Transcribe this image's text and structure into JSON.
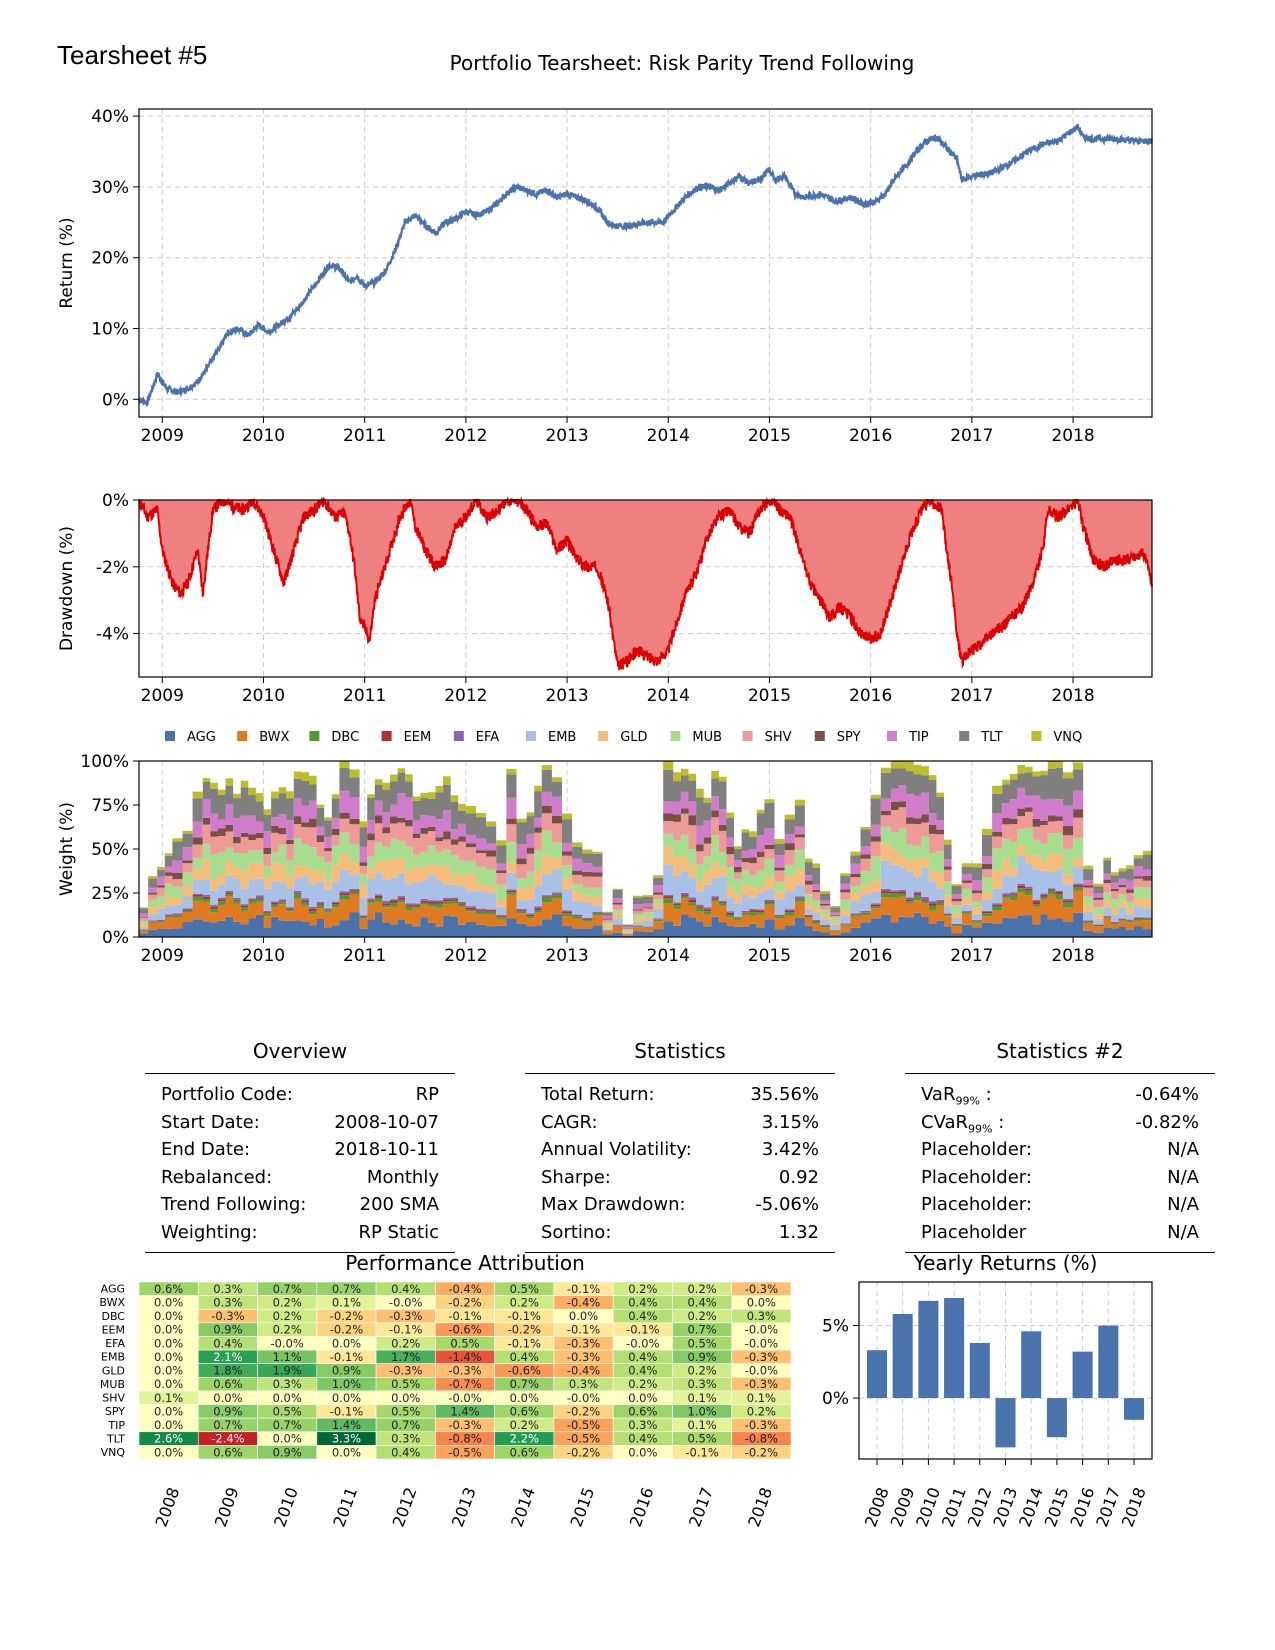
{
  "header": {
    "corner_title": "Tearsheet #5",
    "main_title": "Portfolio Tearsheet: Risk Parity Trend Following"
  },
  "colors": {
    "line": "#4a73ae",
    "drawdown_line": "#dd0000",
    "drawdown_fill": "#ee8080",
    "grid": "#cccccc",
    "bar": "#4a73ae"
  },
  "chart_data": [
    {
      "id": "returns",
      "type": "line",
      "ylabel": "Return (%)",
      "xlabel": "",
      "xlim": [
        2008.77,
        2018.78
      ],
      "ylim": [
        -2.5,
        41
      ],
      "yticks": [
        0,
        10,
        20,
        30,
        40
      ],
      "ytick_labels": [
        "0%",
        "10%",
        "20%",
        "30%",
        "40%"
      ],
      "xticks": [
        2009,
        2010,
        2011,
        2012,
        2013,
        2014,
        2015,
        2016,
        2017,
        2018
      ],
      "grid": true,
      "x": [
        2008.77,
        2008.85,
        2008.95,
        2009.05,
        2009.15,
        2009.25,
        2009.35,
        2009.45,
        2009.55,
        2009.65,
        2009.75,
        2009.85,
        2009.95,
        2010.05,
        2010.15,
        2010.25,
        2010.35,
        2010.45,
        2010.55,
        2010.65,
        2010.75,
        2010.85,
        2010.92,
        2011.0,
        2011.1,
        2011.2,
        2011.3,
        2011.4,
        2011.5,
        2011.6,
        2011.7,
        2011.8,
        2011.9,
        2012.0,
        2012.1,
        2012.2,
        2012.3,
        2012.4,
        2012.5,
        2012.6,
        2012.7,
        2012.8,
        2012.9,
        2013.0,
        2013.1,
        2013.2,
        2013.3,
        2013.4,
        2013.47,
        2013.6,
        2013.8,
        2013.95,
        2014.1,
        2014.2,
        2014.3,
        2014.4,
        2014.5,
        2014.6,
        2014.7,
        2014.8,
        2014.9,
        2015.0,
        2015.05,
        2015.15,
        2015.25,
        2015.35,
        2015.5,
        2015.65,
        2015.8,
        2015.95,
        2016.05,
        2016.15,
        2016.25,
        2016.35,
        2016.45,
        2016.55,
        2016.65,
        2016.75,
        2016.85,
        2016.9,
        2017.0,
        2017.2,
        2017.4,
        2017.55,
        2017.7,
        2017.85,
        2017.95,
        2018.05,
        2018.1,
        2018.2,
        2018.4,
        2018.6,
        2018.78
      ],
      "values": [
        0,
        -0.5,
        3.5,
        1.5,
        1.0,
        1.5,
        2.5,
        4.5,
        7.0,
        9.5,
        10.0,
        9.0,
        10.5,
        9.5,
        10.5,
        11.5,
        13.0,
        15.0,
        17.0,
        19.0,
        18.5,
        16.5,
        17.5,
        16.0,
        16.5,
        18.0,
        21.0,
        25.0,
        26.0,
        24.5,
        23.5,
        25.0,
        25.5,
        26.5,
        26.0,
        26.5,
        27.5,
        29.0,
        30.0,
        29.5,
        29.0,
        29.5,
        28.5,
        29.0,
        28.5,
        28.0,
        27.0,
        25.0,
        24.5,
        24.5,
        25.0,
        25.0,
        27.5,
        29.0,
        30.0,
        30.0,
        29.5,
        30.5,
        31.5,
        30.5,
        31.0,
        32.5,
        31.0,
        31.5,
        29.0,
        28.5,
        29.0,
        28.0,
        28.5,
        27.5,
        28.0,
        29.0,
        31.5,
        33.0,
        35.0,
        36.5,
        37.0,
        35.5,
        34.0,
        31.0,
        31.5,
        32.0,
        33.5,
        35.0,
        36.0,
        36.5,
        37.5,
        38.5,
        37.0,
        36.8,
        36.8,
        36.5,
        36.5
      ]
    },
    {
      "id": "drawdown",
      "type": "area",
      "ylabel": "Drawdown (%)",
      "xlabel": "",
      "xlim": [
        2008.77,
        2018.78
      ],
      "ylim": [
        -5.3,
        0
      ],
      "yticks": [
        0,
        -2,
        -4
      ],
      "ytick_labels": [
        "0%",
        "-2%",
        "-4%"
      ],
      "xticks": [
        2009,
        2010,
        2011,
        2012,
        2013,
        2014,
        2015,
        2016,
        2017,
        2018
      ],
      "grid": true,
      "x": [
        2008.77,
        2008.85,
        2008.95,
        2009.0,
        2009.1,
        2009.18,
        2009.25,
        2009.35,
        2009.4,
        2009.5,
        2009.6,
        2009.7,
        2009.8,
        2009.9,
        2010.0,
        2010.05,
        2010.15,
        2010.2,
        2010.3,
        2010.4,
        2010.5,
        2010.6,
        2010.7,
        2010.8,
        2010.85,
        2010.9,
        2010.95,
        2011.05,
        2011.1,
        2011.2,
        2011.3,
        2011.35,
        2011.45,
        2011.5,
        2011.6,
        2011.7,
        2011.8,
        2011.9,
        2012.0,
        2012.1,
        2012.2,
        2012.3,
        2012.4,
        2012.5,
        2012.6,
        2012.7,
        2012.8,
        2012.9,
        2013.0,
        2013.1,
        2013.2,
        2013.3,
        2013.4,
        2013.45,
        2013.5,
        2013.6,
        2013.7,
        2013.8,
        2013.9,
        2014.0,
        2014.05,
        2014.15,
        2014.3,
        2014.4,
        2014.5,
        2014.6,
        2014.7,
        2014.8,
        2014.9,
        2015.0,
        2015.05,
        2015.1,
        2015.2,
        2015.3,
        2015.4,
        2015.5,
        2015.6,
        2015.7,
        2015.8,
        2015.9,
        2016.0,
        2016.1,
        2016.2,
        2016.3,
        2016.4,
        2016.5,
        2016.6,
        2016.7,
        2016.75,
        2016.8,
        2016.85,
        2016.9,
        2017.0,
        2017.1,
        2017.2,
        2017.3,
        2017.4,
        2017.5,
        2017.6,
        2017.7,
        2017.75,
        2017.85,
        2017.95,
        2018.05,
        2018.1,
        2018.2,
        2018.3,
        2018.4,
        2018.5,
        2018.6,
        2018.7,
        2018.78
      ],
      "values": [
        0,
        -0.5,
        -0.3,
        -1.5,
        -2.5,
        -2.8,
        -2.5,
        -1.5,
        -2.8,
        -0.3,
        0,
        -0.2,
        -0.3,
        0,
        -0.5,
        -1.0,
        -2.0,
        -2.5,
        -1.5,
        -0.5,
        -0.3,
        0,
        -0.5,
        -0.4,
        -1.0,
        -2.0,
        -3.5,
        -4.2,
        -3.0,
        -2.0,
        -1.0,
        -0.5,
        0,
        -0.8,
        -1.5,
        -2.0,
        -1.8,
        -0.8,
        -0.5,
        0,
        -0.5,
        -0.4,
        0,
        0,
        -0.3,
        -0.8,
        -0.7,
        -1.5,
        -1.2,
        -1.8,
        -2.0,
        -2.0,
        -3.0,
        -4.0,
        -5.0,
        -4.8,
        -4.5,
        -4.7,
        -4.8,
        -4.5,
        -4.0,
        -3.0,
        -2.0,
        -1.0,
        -0.5,
        -0.3,
        -0.8,
        -1.0,
        -0.3,
        0,
        0,
        -0.3,
        -0.5,
        -1.5,
        -2.5,
        -3.0,
        -3.5,
        -3.2,
        -3.5,
        -4.0,
        -4.2,
        -4.0,
        -3.0,
        -2.0,
        -1.0,
        -0.3,
        0,
        -0.3,
        -1.5,
        -2.5,
        -4.0,
        -4.8,
        -4.5,
        -4.3,
        -4.0,
        -3.8,
        -3.5,
        -3.2,
        -2.5,
        -1.5,
        -0.3,
        -0.5,
        -0.3,
        0,
        -0.8,
        -1.8,
        -2.0,
        -1.8,
        -1.8,
        -1.7,
        -1.6,
        -2.5
      ]
    },
    {
      "id": "weights",
      "type": "area",
      "ylabel": "Weight (%)",
      "xlabel": "",
      "xlim": [
        2008.77,
        2018.78
      ],
      "ylim": [
        0,
        100
      ],
      "yticks": [
        0,
        25,
        50,
        75,
        100
      ],
      "ytick_labels": [
        "0%",
        "25%",
        "50%",
        "75%",
        "100%"
      ],
      "xticks": [
        2009,
        2010,
        2011,
        2012,
        2013,
        2014,
        2015,
        2016,
        2017,
        2018
      ],
      "legend": "top",
      "assets": [
        "AGG",
        "BWX",
        "DBC",
        "EEM",
        "EFA",
        "EMB",
        "GLD",
        "MUB",
        "SHV",
        "SPY",
        "TIP",
        "TLT",
        "VNQ"
      ],
      "asset_colors": [
        "#4a73ae",
        "#e07a20",
        "#4e9a2f",
        "#bb2a2e",
        "#8a63b8",
        "#a9c1e6",
        "#f6bc7a",
        "#a7dd8e",
        "#ee9a96",
        "#7a5046",
        "#d07ccb",
        "#7f7f7f",
        "#bcbd2a"
      ],
      "asset_profile": [
        0.11,
        0.1,
        0.02,
        0.01,
        0.01,
        0.12,
        0.09,
        0.12,
        0.1,
        0.04,
        0.1,
        0.14,
        0.04
      ],
      "x": [
        2008.77,
        2008.95,
        2009.1,
        2009.2,
        2009.3,
        2009.4,
        2009.55,
        2009.7,
        2009.85,
        2010.0,
        2010.15,
        2010.3,
        2010.45,
        2010.6,
        2010.75,
        2010.85,
        2010.95,
        2011.1,
        2011.25,
        2011.4,
        2011.55,
        2011.7,
        2011.85,
        2012.0,
        2012.1,
        2012.2,
        2012.3,
        2012.4,
        2012.5,
        2012.6,
        2012.75,
        2012.85,
        2012.95,
        2013.05,
        2013.15,
        2013.25,
        2013.35,
        2013.45,
        2013.55,
        2013.65,
        2013.75,
        2013.85,
        2013.95,
        2014.05,
        2014.2,
        2014.35,
        2014.5,
        2014.65,
        2014.8,
        2014.95,
        2015.05,
        2015.15,
        2015.25,
        2015.35,
        2015.5,
        2015.6,
        2015.7,
        2015.8,
        2015.9,
        2016.0,
        2016.1,
        2016.2,
        2016.35,
        2016.5,
        2016.65,
        2016.8,
        2016.9,
        2017.0,
        2017.1,
        2017.2,
        2017.3,
        2017.45,
        2017.6,
        2017.75,
        2017.9,
        2018.0,
        2018.1,
        2018.2,
        2018.3,
        2018.45,
        2018.6,
        2018.78
      ],
      "totals": [
        22,
        35,
        55,
        60,
        82,
        88,
        89,
        88,
        80,
        78,
        80,
        90,
        85,
        70,
        95,
        95,
        72,
        85,
        95,
        90,
        80,
        85,
        85,
        80,
        75,
        60,
        55,
        90,
        65,
        70,
        95,
        88,
        75,
        55,
        52,
        48,
        18,
        22,
        10,
        22,
        20,
        30,
        95,
        95,
        92,
        85,
        90,
        50,
        60,
        75,
        58,
        75,
        80,
        45,
        30,
        20,
        38,
        45,
        65,
        85,
        98,
        99,
        100,
        99,
        85,
        25,
        35,
        40,
        55,
        80,
        95,
        98,
        100,
        100,
        98,
        95,
        45,
        35,
        40,
        40,
        45,
        55
      ]
    },
    {
      "id": "performance_attribution",
      "type": "heatmap",
      "title": "Performance Attribution",
      "rows": [
        "AGG",
        "BWX",
        "DBC",
        "EEM",
        "EFA",
        "EMB",
        "GLD",
        "MUB",
        "SHV",
        "SPY",
        "TIP",
        "TLT",
        "VNQ"
      ],
      "columns": [
        "2008",
        "2009",
        "2010",
        "2011",
        "2012",
        "2013",
        "2014",
        "2015",
        "2016",
        "2017",
        "2018"
      ],
      "values": [
        [
          "0.6%",
          "0.3%",
          "0.7%",
          "0.7%",
          "0.4%",
          "-0.4%",
          "0.5%",
          "-0.1%",
          "0.2%",
          "0.2%",
          "-0.3%"
        ],
        [
          "0.0%",
          "0.3%",
          "0.2%",
          "0.1%",
          "-0.0%",
          "-0.2%",
          "0.2%",
          "-0.4%",
          "0.4%",
          "0.4%",
          "0.0%"
        ],
        [
          "0.0%",
          "-0.3%",
          "0.2%",
          "-0.2%",
          "-0.3%",
          "-0.1%",
          "-0.1%",
          "0.0%",
          "0.4%",
          "0.2%",
          "0.3%"
        ],
        [
          "0.0%",
          "0.9%",
          "0.2%",
          "-0.2%",
          "-0.1%",
          "-0.6%",
          "-0.2%",
          "-0.1%",
          "-0.1%",
          "0.7%",
          "-0.0%"
        ],
        [
          "0.0%",
          "0.4%",
          "-0.0%",
          "0.0%",
          "0.2%",
          "0.5%",
          "-0.1%",
          "-0.3%",
          "-0.0%",
          "0.5%",
          "-0.0%"
        ],
        [
          "0.0%",
          "2.1%",
          "1.1%",
          "-0.1%",
          "1.7%",
          "-1.4%",
          "0.4%",
          "-0.3%",
          "0.4%",
          "0.9%",
          "-0.3%"
        ],
        [
          "0.0%",
          "1.8%",
          "1.9%",
          "0.9%",
          "-0.3%",
          "-0.3%",
          "-0.6%",
          "-0.4%",
          "0.4%",
          "0.2%",
          "-0.0%"
        ],
        [
          "0.0%",
          "0.6%",
          "0.3%",
          "1.0%",
          "0.5%",
          "-0.7%",
          "0.7%",
          "0.3%",
          "0.2%",
          "0.3%",
          "-0.3%"
        ],
        [
          "0.1%",
          "0.0%",
          "0.0%",
          "0.0%",
          "0.0%",
          "-0.0%",
          "0.0%",
          "-0.0%",
          "0.0%",
          "0.1%",
          "0.1%"
        ],
        [
          "0.0%",
          "0.9%",
          "0.5%",
          "-0.1%",
          "0.5%",
          "1.4%",
          "0.6%",
          "-0.2%",
          "0.6%",
          "1.0%",
          "0.2%"
        ],
        [
          "0.0%",
          "0.7%",
          "0.7%",
          "1.4%",
          "0.7%",
          "-0.3%",
          "0.2%",
          "-0.5%",
          "0.3%",
          "0.1%",
          "-0.3%"
        ],
        [
          "2.6%",
          "-2.4%",
          "0.0%",
          "3.3%",
          "0.3%",
          "-0.8%",
          "2.2%",
          "-0.5%",
          "0.4%",
          "0.5%",
          "-0.8%"
        ],
        [
          "0.0%",
          "0.6%",
          "0.9%",
          "0.0%",
          "0.4%",
          "-0.5%",
          "0.6%",
          "-0.2%",
          "0.0%",
          "-0.1%",
          "-0.2%"
        ]
      ]
    },
    {
      "id": "yearly_returns",
      "type": "bar",
      "title": "Yearly Returns (%)",
      "categories": [
        "2008",
        "2009",
        "2010",
        "2011",
        "2012",
        "2013",
        "2014",
        "2015",
        "2016",
        "2017",
        "2018"
      ],
      "values": [
        3.3,
        5.8,
        6.7,
        6.9,
        3.8,
        -3.4,
        4.6,
        -2.7,
        3.2,
        5.0,
        -1.5
      ],
      "ylim": [
        -4.2,
        8.0
      ],
      "yticks": [
        0,
        5
      ],
      "ytick_labels": [
        "0%",
        "5%"
      ],
      "grid": true
    }
  ],
  "overview": {
    "title": "Overview",
    "rows": [
      {
        "label": "Portfolio Code:",
        "value": "RP"
      },
      {
        "label": "Start Date:",
        "value": "2008-10-07"
      },
      {
        "label": "End Date:",
        "value": "2018-10-11"
      },
      {
        "label": "Rebalanced:",
        "value": "Monthly"
      },
      {
        "label": "Trend Following:",
        "value": "200 SMA"
      },
      {
        "label": "Weighting:",
        "value": "RP Static"
      }
    ]
  },
  "statistics": {
    "title": "Statistics",
    "rows": [
      {
        "label": "Total Return:",
        "value": "35.56%"
      },
      {
        "label": "CAGR:",
        "value": "3.15%"
      },
      {
        "label": "Annual Volatility:",
        "value": "3.42%"
      },
      {
        "label": "Sharpe:",
        "value": "0.92"
      },
      {
        "label": "Max Drawdown:",
        "value": "-5.06%"
      },
      {
        "label": "Sortino:",
        "value": "1.32"
      }
    ]
  },
  "statistics2": {
    "title": "Statistics #2",
    "rows": [
      {
        "label": "VaR",
        "sub": "99%",
        "suffix": " :",
        "value": "-0.64%"
      },
      {
        "label": "CVaR",
        "sub": "99%",
        "suffix": " :",
        "value": "-0.82%"
      },
      {
        "label": "Placeholder:",
        "sub": "",
        "suffix": "",
        "value": "N/A"
      },
      {
        "label": "Placeholder:",
        "sub": "",
        "suffix": "",
        "value": "N/A"
      },
      {
        "label": "Placeholder:",
        "sub": "",
        "suffix": "",
        "value": "N/A"
      },
      {
        "label": "Placeholder",
        "sub": "",
        "suffix": "",
        "value": "N/A"
      }
    ]
  }
}
